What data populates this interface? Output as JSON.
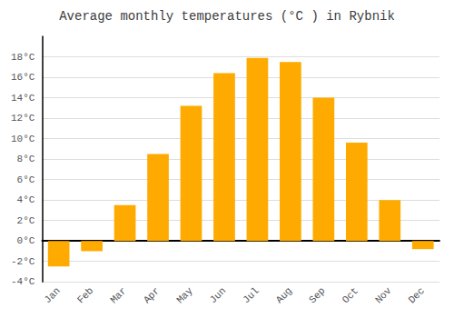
{
  "chart_data": {
    "type": "bar",
    "title": "Average monthly temperatures (°C ) in Rybnik",
    "categories": [
      "Jan",
      "Feb",
      "Mar",
      "Apr",
      "May",
      "Jun",
      "Jul",
      "Aug",
      "Sep",
      "Oct",
      "Nov",
      "Dec"
    ],
    "values": [
      -2.5,
      -1.0,
      3.5,
      8.5,
      13.2,
      16.4,
      17.9,
      17.5,
      14.0,
      9.6,
      4.0,
      -0.8
    ],
    "color": "#FFAA00",
    "ylim": [
      -4,
      20
    ],
    "yticks": [
      {
        "value": -4,
        "label": "-4°C"
      },
      {
        "value": -2,
        "label": "-2°C"
      },
      {
        "value": 0,
        "label": "0°C"
      },
      {
        "value": 2,
        "label": "2°C"
      },
      {
        "value": 4,
        "label": "4°C"
      },
      {
        "value": 6,
        "label": "6°C"
      },
      {
        "value": 8,
        "label": "8°C"
      },
      {
        "value": 10,
        "label": "10°C"
      },
      {
        "value": 12,
        "label": "12°C"
      },
      {
        "value": 14,
        "label": "14°C"
      },
      {
        "value": 16,
        "label": "16°C"
      },
      {
        "value": 18,
        "label": "18°C"
      }
    ],
    "grid": true
  }
}
